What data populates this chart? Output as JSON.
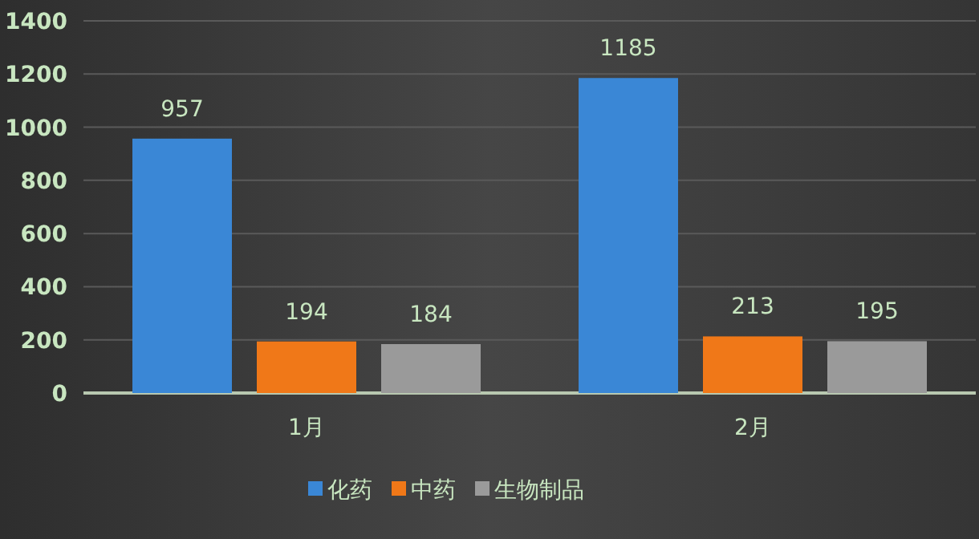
{
  "chart_data": {
    "type": "bar",
    "categories": [
      "1月",
      "2月"
    ],
    "series": [
      {
        "name": "化药",
        "color": "#3a87d6",
        "values": [
          957,
          1185
        ]
      },
      {
        "name": "中药",
        "color": "#f07818",
        "values": [
          194,
          213
        ]
      },
      {
        "name": "生物制品",
        "color": "#9a9a9a",
        "values": [
          184,
          195
        ]
      }
    ],
    "ylim": [
      0,
      1400
    ],
    "yticks": [
      0,
      200,
      400,
      600,
      800,
      1000,
      1200,
      1400
    ],
    "grid": "y",
    "legend": "bottom",
    "data_labels": true
  }
}
